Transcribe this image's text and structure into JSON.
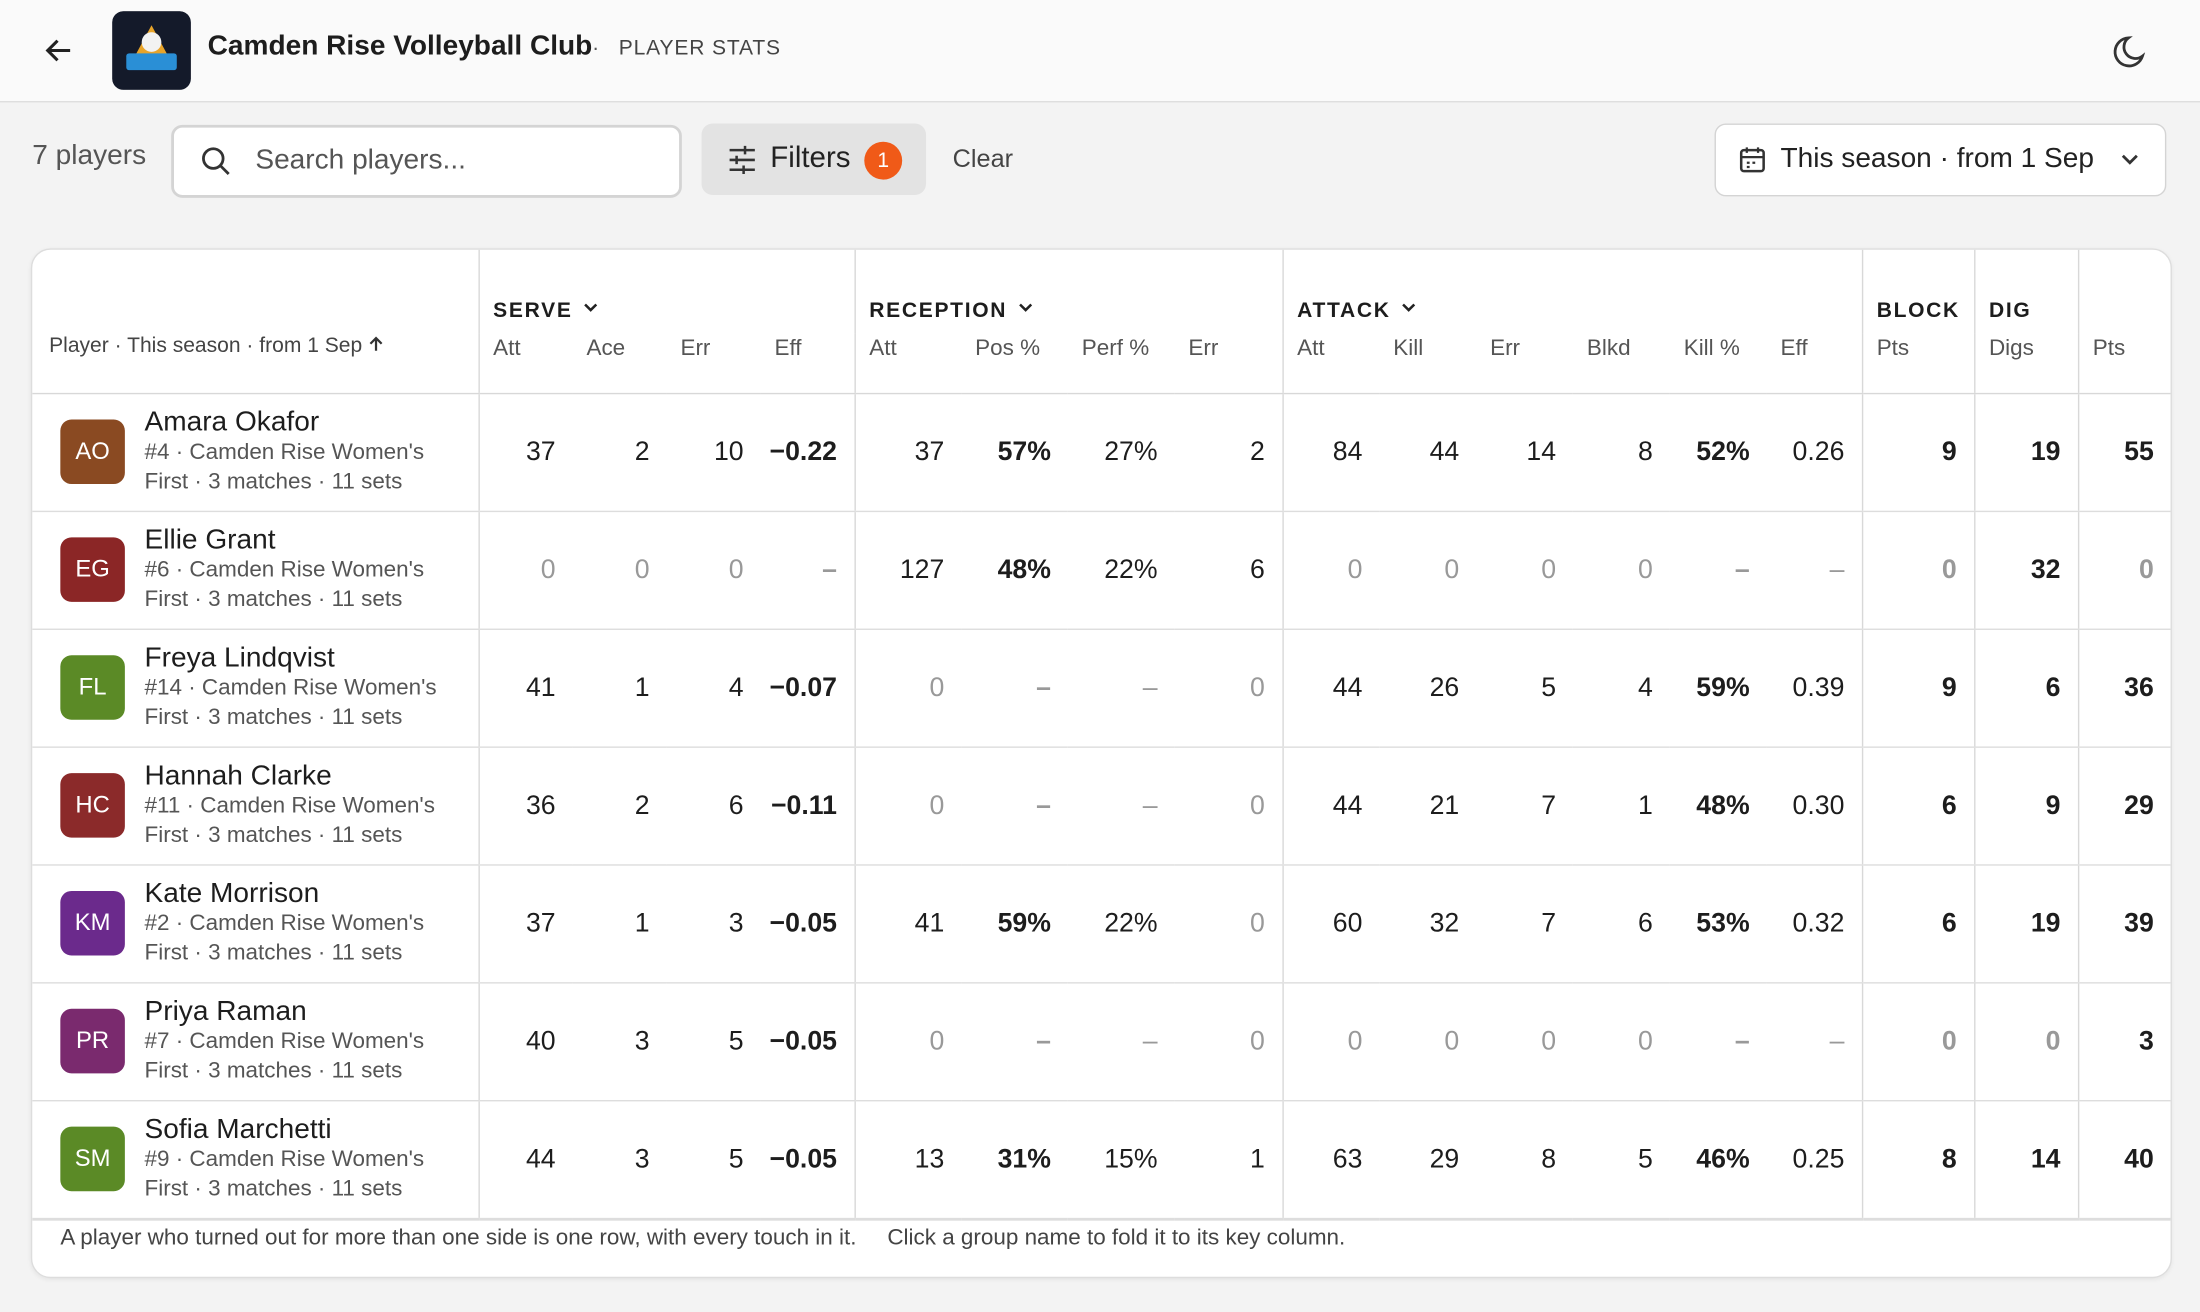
{
  "header": {
    "title": "Camden Rise Volleyball Club",
    "separator": "·",
    "section": "PLAYER STATS"
  },
  "toolbar": {
    "count": "7 players",
    "search_placeholder": "Search players...",
    "filters": "Filters",
    "filter_count": 1,
    "clear": "Clear",
    "date_range": "This season · from 1 Sep"
  },
  "table": {
    "player_header": "Player · This season · from 1 Sep",
    "groups": [
      {
        "label": "SERVE",
        "collapsible": true,
        "columns": [
          "Att",
          "Ace",
          "Err",
          "Eff"
        ]
      },
      {
        "label": "RECEPTION",
        "collapsible": true,
        "columns": [
          "Att",
          "Pos %",
          "Perf %",
          "Err"
        ]
      },
      {
        "label": "ATTACK",
        "collapsible": true,
        "columns": [
          "Att",
          "Kill",
          "Err",
          "Blkd",
          "Kill %",
          "Eff"
        ]
      },
      {
        "label": "BLOCK",
        "collapsible": false,
        "columns": [
          "Pts"
        ]
      },
      {
        "label": "DIG",
        "collapsible": false,
        "columns": [
          "Digs"
        ]
      },
      {
        "label": null,
        "collapsible": false,
        "columns": [
          "Pts"
        ]
      }
    ],
    "rows": [
      {
        "initials": "AO",
        "avatar_color": "#8a4a22",
        "name": "Amara Okafor",
        "meta": "#4 · Camden Rise Women's First · 3 matches · 11 sets",
        "cells": [
          "37",
          "2",
          "10",
          "−0.22",
          "37",
          "57%",
          "27%",
          "2",
          "84",
          "44",
          "14",
          "8",
          "52%",
          "0.26",
          "9",
          "19",
          "55"
        ]
      },
      {
        "initials": "EG",
        "avatar_color": "#8b2626",
        "name": "Ellie Grant",
        "meta": "#6 · Camden Rise Women's First · 3 matches · 11 sets",
        "cells": [
          "0",
          "0",
          "0",
          "–",
          "127",
          "48%",
          "22%",
          "6",
          "0",
          "0",
          "0",
          "0",
          "–",
          "–",
          "0",
          "32",
          "0"
        ]
      },
      {
        "initials": "FL",
        "avatar_color": "#5b8a26",
        "name": "Freya Lindqvist",
        "meta": "#14 · Camden Rise Women's First · 3 matches · 11 sets",
        "cells": [
          "41",
          "1",
          "4",
          "−0.07",
          "0",
          "–",
          "–",
          "0",
          "44",
          "26",
          "5",
          "4",
          "59%",
          "0.39",
          "9",
          "6",
          "36"
        ]
      },
      {
        "initials": "HC",
        "avatar_color": "#8b2a2a",
        "name": "Hannah Clarke",
        "meta": "#11 · Camden Rise Women's First · 3 matches · 11 sets",
        "cells": [
          "36",
          "2",
          "6",
          "−0.11",
          "0",
          "–",
          "–",
          "0",
          "44",
          "21",
          "7",
          "1",
          "48%",
          "0.30",
          "6",
          "9",
          "29"
        ]
      },
      {
        "initials": "KM",
        "avatar_color": "#6b2a8c",
        "name": "Kate Morrison",
        "meta": "#2 · Camden Rise Women's First · 3 matches · 11 sets",
        "cells": [
          "37",
          "1",
          "3",
          "−0.05",
          "41",
          "59%",
          "22%",
          "0",
          "60",
          "32",
          "7",
          "6",
          "53%",
          "0.32",
          "6",
          "19",
          "39"
        ]
      },
      {
        "initials": "PR",
        "avatar_color": "#7a2a6e",
        "name": "Priya Raman",
        "meta": "#7 · Camden Rise Women's First · 3 matches · 11 sets",
        "cells": [
          "40",
          "3",
          "5",
          "−0.05",
          "0",
          "–",
          "–",
          "0",
          "0",
          "0",
          "0",
          "0",
          "–",
          "–",
          "0",
          "0",
          "3"
        ]
      },
      {
        "initials": "SM",
        "avatar_color": "#5b8a26",
        "name": "Sofia Marchetti",
        "meta": "#9 · Camden Rise Women's First · 3 matches · 11 sets",
        "cells": [
          "44",
          "3",
          "5",
          "−0.05",
          "13",
          "31%",
          "15%",
          "1",
          "63",
          "29",
          "8",
          "5",
          "46%",
          "0.25",
          "8",
          "14",
          "40"
        ]
      }
    ],
    "notes": [
      "A player who turned out for more than one side is one row, with every touch in it.",
      "Click a group name to fold it to its key column."
    ]
  }
}
